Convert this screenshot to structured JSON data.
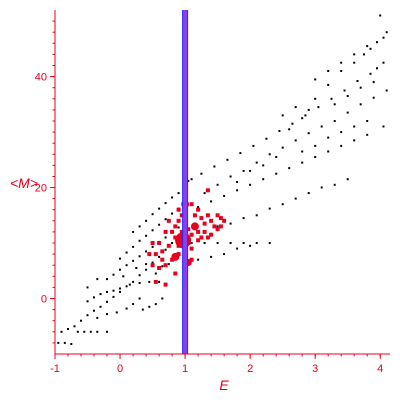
{
  "chart_data": {
    "type": "scatter",
    "title": "",
    "xlabel": "E",
    "ylabel": "<M>",
    "xlim": [
      -1,
      4.15
    ],
    "ylim": [
      -10,
      52
    ],
    "x_ticks": [
      -1,
      0,
      1,
      2,
      3,
      4
    ],
    "y_ticks": [
      0,
      20,
      40
    ],
    "x_tick_labels": [
      "-1",
      "0",
      "1",
      "2",
      "3",
      "4"
    ],
    "y_tick_labels": [
      "0",
      "20",
      "40"
    ],
    "grid": false,
    "legend": "none",
    "vertical_line": {
      "x": 1.0,
      "color": "#8b3fe8",
      "edge_color": "#2a2aff"
    },
    "colors": {
      "axis": "#e8001c",
      "background_points": "#000000",
      "highlight_points": "#e8001c"
    },
    "series": [
      {
        "color": "#000000",
        "points": [
          [
            -0.95,
            -8
          ],
          [
            -0.85,
            -8
          ],
          [
            -0.75,
            -8.2
          ],
          [
            -0.9,
            -6
          ],
          [
            -0.8,
            -5.5
          ],
          [
            -0.7,
            -5
          ],
          [
            -0.6,
            -4
          ],
          [
            -0.5,
            -3
          ],
          [
            -0.4,
            -2.2
          ],
          [
            -0.3,
            -1.5
          ],
          [
            -0.2,
            -0.6
          ],
          [
            -0.1,
            0.3
          ],
          [
            0.0,
            1.2
          ],
          [
            0.1,
            2.2
          ],
          [
            0.2,
            3.0
          ],
          [
            0.3,
            4.2
          ],
          [
            0.4,
            5.2
          ],
          [
            0.5,
            6.5
          ],
          [
            0.6,
            7.5
          ],
          [
            0.7,
            8.8
          ],
          [
            0.8,
            10
          ],
          [
            0.9,
            11
          ],
          [
            -0.65,
            -6
          ],
          [
            -0.55,
            -6
          ],
          [
            -0.45,
            -6
          ],
          [
            -0.35,
            -6
          ],
          [
            -0.2,
            -6
          ],
          [
            -0.5,
            -0.5
          ],
          [
            -0.4,
            0.2
          ],
          [
            -0.3,
            0.8
          ],
          [
            -0.2,
            1.2
          ],
          [
            -0.1,
            1.4
          ],
          [
            0.0,
            1.8
          ],
          [
            0.15,
            2.5
          ],
          [
            0.3,
            2.8
          ],
          [
            0.45,
            3
          ],
          [
            0.6,
            3
          ],
          [
            -0.35,
            -3.5
          ],
          [
            -0.2,
            -2.8
          ],
          [
            -0.05,
            -2.5
          ],
          [
            0.1,
            -1.8
          ],
          [
            0.2,
            -1
          ],
          [
            0.3,
            0
          ],
          [
            0.35,
            -2
          ],
          [
            0.45,
            -1.5
          ],
          [
            0.55,
            -1
          ],
          [
            0.65,
            0
          ],
          [
            -0.2,
            3.5
          ],
          [
            -0.1,
            4.3
          ],
          [
            0.0,
            5.2
          ],
          [
            0.1,
            6
          ],
          [
            0.2,
            6.8
          ],
          [
            0.3,
            7.6
          ],
          [
            0.4,
            8.5
          ],
          [
            0.5,
            9.3
          ],
          [
            0.6,
            10.2
          ],
          [
            0.7,
            11
          ],
          [
            0.8,
            12
          ],
          [
            0.9,
            12.8
          ],
          [
            0.0,
            7.2
          ],
          [
            0.1,
            8.3
          ],
          [
            0.2,
            9.3
          ],
          [
            0.3,
            10.4
          ],
          [
            0.4,
            11.3
          ],
          [
            0.5,
            12.3
          ],
          [
            0.6,
            13.3
          ],
          [
            0.7,
            14.3
          ],
          [
            0.8,
            15.3
          ],
          [
            0.9,
            16.2
          ],
          [
            0.2,
            12
          ],
          [
            0.3,
            13
          ],
          [
            0.4,
            14
          ],
          [
            0.5,
            15.2
          ],
          [
            0.6,
            16.2
          ],
          [
            0.7,
            17.2
          ],
          [
            0.8,
            18.2
          ],
          [
            0.9,
            19
          ],
          [
            -0.5,
            2
          ],
          [
            -0.35,
            3.5
          ],
          [
            0.05,
            4
          ],
          [
            0.25,
            5.5
          ],
          [
            0.4,
            6.2
          ],
          [
            0.55,
            4.5
          ],
          [
            0.65,
            5.8
          ],
          [
            0.75,
            6.2
          ],
          [
            0.85,
            7.5
          ],
          [
            1.05,
            21.2
          ],
          [
            1.1,
            21.5
          ],
          [
            1.25,
            22.5
          ],
          [
            1.45,
            23.8
          ],
          [
            1.65,
            25
          ],
          [
            1.85,
            26.2
          ],
          [
            2.05,
            27.5
          ],
          [
            2.25,
            28.8
          ],
          [
            2.45,
            30.2
          ],
          [
            2.65,
            31.5
          ],
          [
            2.85,
            33
          ],
          [
            3.05,
            34.5
          ],
          [
            3.25,
            36
          ],
          [
            3.45,
            37.5
          ],
          [
            3.65,
            39.2
          ],
          [
            3.85,
            40.5
          ],
          [
            3.95,
            41.5
          ],
          [
            4.05,
            42.5
          ],
          [
            2.6,
            30.5
          ],
          [
            2.8,
            32.5
          ],
          [
            2.9,
            34
          ],
          [
            3.0,
            36
          ],
          [
            3.2,
            38.5
          ],
          [
            3.4,
            41
          ],
          [
            3.6,
            42.5
          ],
          [
            3.75,
            44
          ],
          [
            3.85,
            45
          ],
          [
            3.95,
            46.2
          ],
          [
            4.05,
            47
          ],
          [
            4.1,
            48
          ],
          [
            4.0,
            51
          ],
          [
            1.3,
            19
          ],
          [
            1.5,
            20.5
          ],
          [
            1.7,
            22
          ],
          [
            1.9,
            23
          ],
          [
            2.1,
            24.5
          ],
          [
            2.3,
            26
          ],
          [
            2.5,
            27.2
          ],
          [
            2.7,
            28.5
          ],
          [
            2.9,
            29.8
          ],
          [
            3.1,
            31
          ],
          [
            3.3,
            32
          ],
          [
            3.5,
            33.5
          ],
          [
            3.7,
            35
          ],
          [
            3.9,
            36.2
          ],
          [
            4.1,
            37.5
          ],
          [
            1.2,
            16.5
          ],
          [
            1.4,
            17.5
          ],
          [
            1.6,
            18.5
          ],
          [
            1.8,
            19.5
          ],
          [
            2.0,
            20.5
          ],
          [
            2.2,
            21.5
          ],
          [
            2.4,
            22.5
          ],
          [
            2.6,
            23.5
          ],
          [
            2.8,
            24.5
          ],
          [
            3.0,
            25.5
          ],
          [
            3.2,
            26.5
          ],
          [
            3.4,
            27.5
          ],
          [
            3.6,
            28.5
          ],
          [
            3.8,
            29.5
          ],
          [
            4.05,
            31
          ],
          [
            1.5,
            13
          ],
          [
            1.7,
            13.5
          ],
          [
            1.9,
            14.5
          ],
          [
            2.1,
            15
          ],
          [
            2.3,
            16.2
          ],
          [
            2.5,
            17
          ],
          [
            2.7,
            18
          ],
          [
            2.9,
            19
          ],
          [
            3.1,
            20
          ],
          [
            3.3,
            20.5
          ],
          [
            3.5,
            21.5
          ],
          [
            1.1,
            10
          ],
          [
            1.3,
            10
          ],
          [
            1.5,
            10
          ],
          [
            1.7,
            10
          ],
          [
            1.9,
            10
          ],
          [
            2.1,
            10
          ],
          [
            2.3,
            10
          ],
          [
            1.2,
            7
          ],
          [
            1.4,
            7.5
          ],
          [
            1.6,
            8
          ],
          [
            1.8,
            9
          ],
          [
            2.0,
            9.5
          ],
          [
            2.8,
            26.5
          ],
          [
            3.0,
            27.5
          ],
          [
            3.2,
            29
          ],
          [
            3.4,
            30
          ],
          [
            3.6,
            31
          ],
          [
            3.8,
            32
          ],
          [
            3.0,
            39.5
          ],
          [
            3.2,
            41
          ],
          [
            3.4,
            42.5
          ],
          [
            3.6,
            44
          ],
          [
            3.8,
            45.5
          ],
          [
            2.5,
            33
          ],
          [
            2.7,
            34.5
          ],
          [
            3.3,
            35
          ],
          [
            3.5,
            36.5
          ],
          [
            3.7,
            38
          ],
          [
            3.9,
            39
          ],
          [
            2.0,
            23
          ],
          [
            2.2,
            24
          ],
          [
            1.8,
            21
          ],
          [
            2.4,
            25.5
          ]
        ]
      },
      {
        "color": "#e8001c",
        "points": [
          [
            0.95,
            10.5
          ],
          [
            1.0,
            11
          ],
          [
            1.05,
            10
          ],
          [
            0.9,
            9.5
          ],
          [
            1.1,
            11.5
          ],
          [
            0.95,
            12
          ],
          [
            1.05,
            12.5
          ],
          [
            0.85,
            11
          ],
          [
            1.15,
            13
          ],
          [
            1.2,
            12
          ],
          [
            1.0,
            8.5
          ],
          [
            0.9,
            8
          ],
          [
            1.1,
            9
          ],
          [
            0.8,
            7
          ],
          [
            0.7,
            6
          ],
          [
            0.6,
            5.5
          ],
          [
            0.5,
            6
          ],
          [
            0.55,
            8
          ],
          [
            0.6,
            10
          ],
          [
            0.65,
            8.5
          ],
          [
            0.75,
            9.5
          ],
          [
            0.8,
            12
          ],
          [
            1.25,
            14.5
          ],
          [
            1.3,
            13.5
          ],
          [
            1.35,
            15
          ],
          [
            1.4,
            14
          ],
          [
            1.45,
            13
          ],
          [
            1.5,
            15
          ],
          [
            1.55,
            14.5
          ],
          [
            1.3,
            12
          ],
          [
            1.35,
            11
          ],
          [
            1.15,
            15
          ],
          [
            1.2,
            16
          ],
          [
            0.9,
            14
          ],
          [
            0.85,
            13
          ],
          [
            0.95,
            15
          ],
          [
            1.0,
            16.5
          ],
          [
            0.7,
            12
          ],
          [
            0.5,
            10
          ],
          [
            0.45,
            8
          ],
          [
            0.55,
            3
          ],
          [
            0.65,
            7
          ],
          [
            1.1,
            7
          ],
          [
            1.05,
            6.5
          ],
          [
            1.2,
            10.5
          ],
          [
            1.4,
            11.5
          ],
          [
            1.5,
            12.5
          ],
          [
            1.6,
            14
          ],
          [
            1.0,
            14
          ],
          [
            0.75,
            14
          ],
          [
            0.9,
            16
          ],
          [
            1.1,
            17
          ],
          [
            1.35,
            19.5
          ],
          [
            0.7,
            2.5
          ],
          [
            0.85,
            4.5
          ],
          [
            1.55,
            13
          ],
          [
            1.25,
            11
          ]
        ]
      }
    ],
    "marker_sizes": [
      {
        "x": 0.97,
        "y": 10.5,
        "r": 8
      },
      {
        "x": 1.0,
        "y": 17,
        "r": 4
      },
      {
        "x": 0.85,
        "y": 7.5,
        "r": 4
      },
      {
        "x": 1.15,
        "y": 13,
        "r": 4
      },
      {
        "x": 1.05,
        "y": 6.5,
        "r": 3.5
      }
    ]
  }
}
